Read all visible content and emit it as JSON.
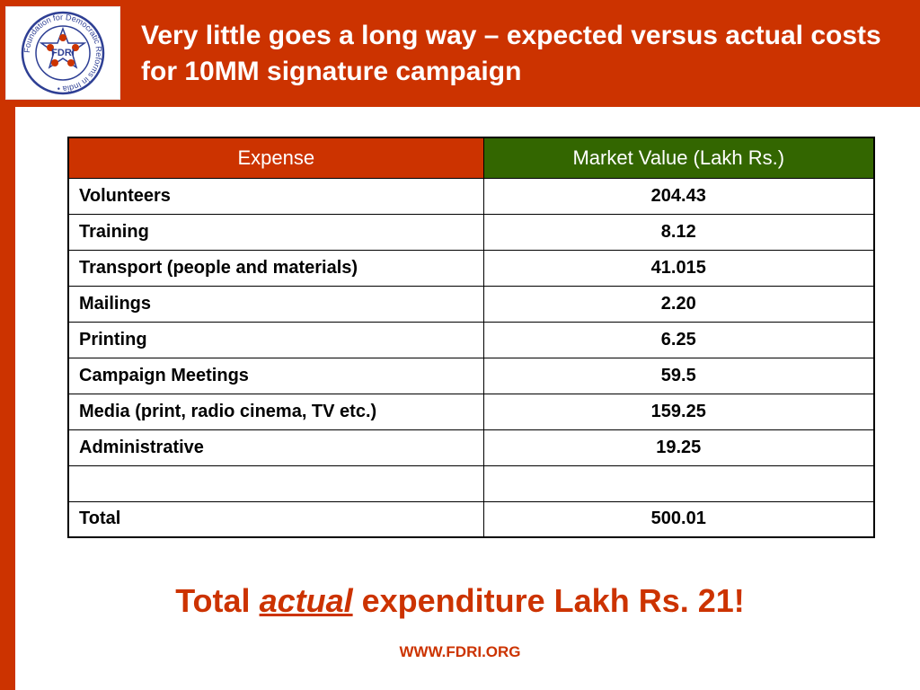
{
  "header": {
    "title": "Very little goes a long way – expected versus actual costs for 10MM signature campaign"
  },
  "logo": {
    "abbr": "FDRI",
    "ring_text": "Foundation for Democratic Reforms in India •"
  },
  "table": {
    "headers": {
      "expense": "Expense",
      "value": "Market Value (Lakh Rs.)"
    },
    "rows": [
      {
        "expense": "Volunteers",
        "value": "204.43"
      },
      {
        "expense": "Training",
        "value": "8.12"
      },
      {
        "expense": "Transport (people and materials)",
        "value": "41.015"
      },
      {
        "expense": "Mailings",
        "value": "2.20"
      },
      {
        "expense": "Printing",
        "value": "6.25"
      },
      {
        "expense": "Campaign Meetings",
        "value": "59.5"
      },
      {
        "expense": "Media  (print, radio cinema, TV etc.)",
        "value": "159.25"
      },
      {
        "expense": "Administrative",
        "value": "19.25"
      },
      {
        "expense": "",
        "value": ""
      },
      {
        "expense": "Total",
        "value": "500.01"
      }
    ]
  },
  "summary": {
    "prefix": "Total",
    "emphasis": "actual",
    "suffix": "expenditure Lakh Rs. 21!"
  },
  "footer": {
    "url": "WWW.FDRI.ORG"
  },
  "colors": {
    "brand_red": "#cc3300",
    "header_green": "#336600",
    "logo_blue": "#2e3f94"
  }
}
